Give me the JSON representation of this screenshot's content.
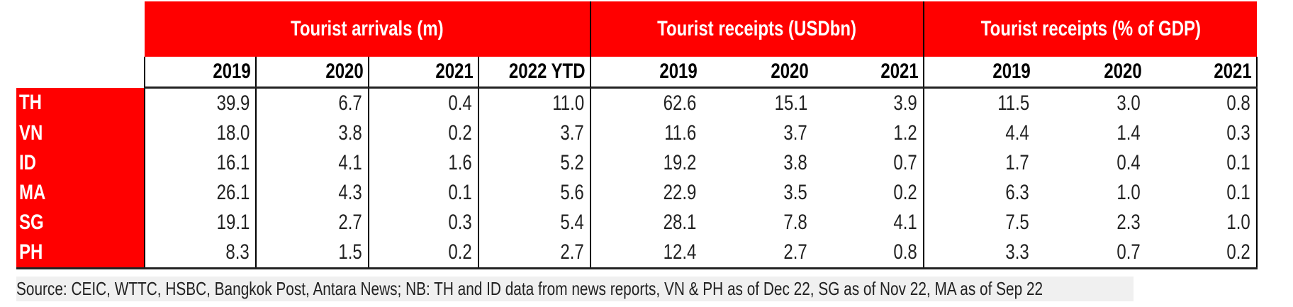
{
  "groups": [
    {
      "title": "Tourist arrivals (m)",
      "years": [
        "2019",
        "2020",
        "2021",
        "2022 YTD"
      ]
    },
    {
      "title": "Tourist receipts (USDbn)",
      "years": [
        "2019",
        "2020",
        "2021"
      ]
    },
    {
      "title": "Tourist receipts (% of GDP)",
      "years": [
        "2019",
        "2020",
        "2021"
      ]
    }
  ],
  "rows": [
    {
      "country": "TH",
      "values": [
        "39.9",
        "6.7",
        "0.4",
        "11.0",
        "62.6",
        "15.1",
        "3.9",
        "11.5",
        "3.0",
        "0.8"
      ]
    },
    {
      "country": "VN",
      "values": [
        "18.0",
        "3.8",
        "0.2",
        "3.7",
        "11.6",
        "3.7",
        "1.2",
        "4.4",
        "1.4",
        "0.3"
      ]
    },
    {
      "country": "ID",
      "values": [
        "16.1",
        "4.1",
        "1.6",
        "5.2",
        "19.2",
        "3.8",
        "0.7",
        "1.7",
        "0.4",
        "0.1"
      ]
    },
    {
      "country": "MA",
      "values": [
        "26.1",
        "4.3",
        "0.1",
        "5.6",
        "22.9",
        "3.5",
        "0.2",
        "6.3",
        "1.0",
        "0.1"
      ]
    },
    {
      "country": "SG",
      "values": [
        "19.1",
        "2.7",
        "0.3",
        "5.4",
        "28.1",
        "7.8",
        "4.1",
        "7.5",
        "2.3",
        "1.0"
      ]
    },
    {
      "country": "PH",
      "values": [
        "8.3",
        "1.5",
        "0.2",
        "2.7",
        "12.4",
        "2.7",
        "0.8",
        "3.3",
        "0.7",
        "0.2"
      ]
    }
  ],
  "source": "Source: CEIC, WTTC, HSBC, Bangkok Post, Antara News; NB: TH and ID data from news reports, VN & PH as of Dec 22, SG as of Nov 22, MA as of Sep 22",
  "colors": {
    "header_bg": "#ff0000",
    "header_text": "#ffffff"
  }
}
